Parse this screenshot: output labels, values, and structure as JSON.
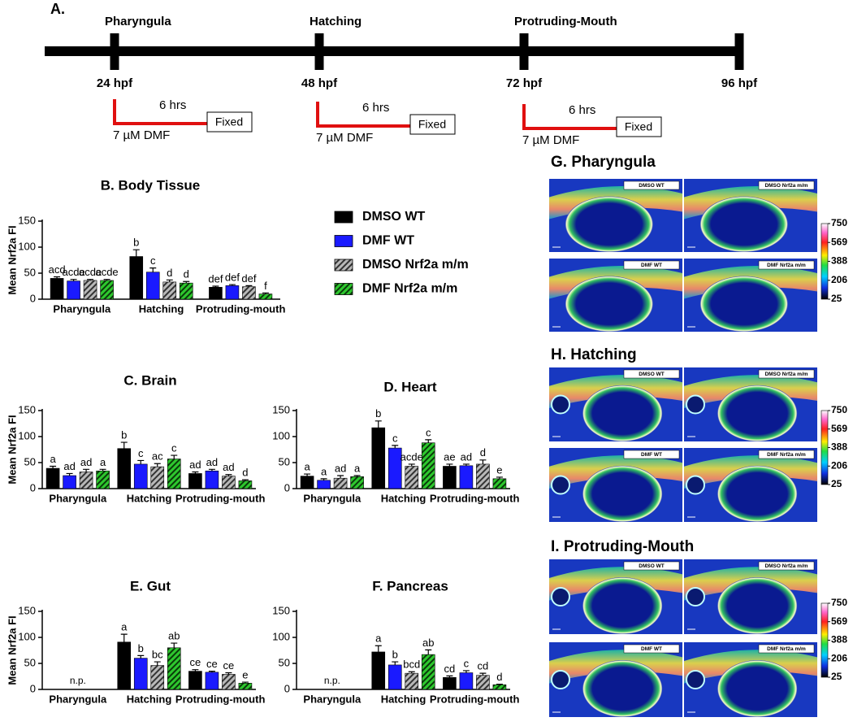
{
  "timeline": {
    "label": "A.",
    "stages": [
      "Pharyngula",
      "Hatching",
      "Protruding-Mouth"
    ],
    "times": [
      "24 hpf",
      "48 hpf",
      "72 hpf",
      "96 hpf"
    ],
    "treatments": [
      {
        "duration": "6 hrs",
        "dose": "7 µM DMF",
        "endpoint": "Fixed"
      },
      {
        "duration": "6 hrs",
        "dose": "7 µM DMF",
        "endpoint": "Fixed"
      },
      {
        "duration": "6 hrs",
        "dose": "7 µM DMF",
        "endpoint": "Fixed"
      }
    ]
  },
  "legend": [
    {
      "name": "DMSO WT",
      "color": "#000000",
      "hatched": false
    },
    {
      "name": "DMF WT",
      "color": "#1a1aff",
      "hatched": false
    },
    {
      "name": "DMSO Nrf2a m/m",
      "color": "#9a9a9a",
      "hatched": true
    },
    {
      "name": "DMF Nrf2a m/m",
      "color": "#1fb01f",
      "hatched": true
    }
  ],
  "chart_data": [
    {
      "type": "bar",
      "title": "B. Body Tissue",
      "ylabel": "Mean Nrf2a FI",
      "categories": [
        "Pharyngula",
        "Hatching",
        "Protruding-mouth"
      ],
      "ylim": [
        0,
        150
      ],
      "yticks": [
        0,
        50,
        100,
        150
      ],
      "series": [
        {
          "values": [
            40,
            82,
            23
          ],
          "errors": [
            3,
            13,
            2
          ],
          "letters": [
            "acd",
            "b",
            "def"
          ]
        },
        {
          "values": [
            35,
            52,
            26
          ],
          "errors": [
            3,
            8,
            2
          ],
          "letters": [
            "acde",
            "c",
            "def"
          ]
        },
        {
          "values": [
            36,
            33,
            24
          ],
          "errors": [
            2,
            4,
            2
          ],
          "letters": [
            "acde",
            "d",
            "def"
          ]
        },
        {
          "values": [
            36,
            31,
            10
          ],
          "errors": [
            2,
            3,
            2
          ],
          "letters": [
            "acde",
            "d",
            "f"
          ]
        }
      ]
    },
    {
      "type": "bar",
      "title": "C.  Brain",
      "ylabel": "Mean Nrf2a FI",
      "categories": [
        "Pharyngula",
        "Hatching",
        "Protruding-mouth"
      ],
      "ylim": [
        0,
        150
      ],
      "yticks": [
        0,
        50,
        100,
        150
      ],
      "series": [
        {
          "values": [
            39,
            77,
            29
          ],
          "errors": [
            4,
            12,
            3
          ],
          "letters": [
            "a",
            "b",
            "ad"
          ]
        },
        {
          "values": [
            25,
            47,
            34
          ],
          "errors": [
            4,
            7,
            3
          ],
          "letters": [
            "ad",
            "c",
            "ad"
          ]
        },
        {
          "values": [
            32,
            42,
            24
          ],
          "errors": [
            5,
            6,
            3
          ],
          "letters": [
            "ad",
            "ac",
            "ad"
          ]
        },
        {
          "values": [
            34,
            57,
            15
          ],
          "errors": [
            3,
            7,
            2
          ],
          "letters": [
            "a",
            "c",
            "d"
          ]
        }
      ]
    },
    {
      "type": "bar",
      "title": "D. Heart",
      "categories": [
        "Pharyngula",
        "Hatching",
        "Protruding-mouth"
      ],
      "ylim": [
        0,
        150
      ],
      "yticks": [
        0,
        50,
        100,
        150
      ],
      "series": [
        {
          "values": [
            24,
            117,
            43
          ],
          "errors": [
            4,
            13,
            4
          ],
          "letters": [
            "a",
            "b",
            "ae"
          ]
        },
        {
          "values": [
            16,
            78,
            44
          ],
          "errors": [
            3,
            5,
            3
          ],
          "letters": [
            "a",
            "c",
            "ad"
          ]
        },
        {
          "values": [
            20,
            43,
            47
          ],
          "errors": [
            5,
            4,
            8
          ],
          "letters": [
            "ad",
            "acde",
            "d"
          ]
        },
        {
          "values": [
            23,
            88,
            19
          ],
          "errors": [
            2,
            6,
            3
          ],
          "letters": [
            "a",
            "c",
            "e"
          ]
        }
      ]
    },
    {
      "type": "bar",
      "title": "E. Gut",
      "ylabel": "Mean Nrf2a FI",
      "missing_label": "n.p.",
      "categories": [
        "Pharyngula",
        "Hatching",
        "Protruding-mouth"
      ],
      "ylim": [
        0,
        150
      ],
      "yticks": [
        0,
        50,
        100,
        150
      ],
      "series": [
        {
          "values": [
            null,
            91,
            35
          ],
          "errors": [
            null,
            15,
            3
          ],
          "letters": [
            null,
            "a",
            "ce"
          ]
        },
        {
          "values": [
            null,
            60,
            33
          ],
          "errors": [
            null,
            5,
            2
          ],
          "letters": [
            null,
            "b",
            "ce"
          ]
        },
        {
          "values": [
            null,
            46,
            29
          ],
          "errors": [
            null,
            7,
            3
          ],
          "letters": [
            null,
            "bc",
            "ce"
          ]
        },
        {
          "values": [
            null,
            80,
            12
          ],
          "errors": [
            null,
            9,
            2
          ],
          "letters": [
            null,
            "ab",
            "e"
          ]
        }
      ]
    },
    {
      "type": "bar",
      "title": "F. Pancreas",
      "missing_label": "n.p.",
      "categories": [
        "Pharyngula",
        "Hatching",
        "Protruding-mouth"
      ],
      "ylim": [
        0,
        150
      ],
      "yticks": [
        0,
        50,
        100,
        150
      ],
      "series": [
        {
          "values": [
            null,
            72,
            23
          ],
          "errors": [
            null,
            12,
            3
          ],
          "letters": [
            null,
            "a",
            "cd"
          ]
        },
        {
          "values": [
            null,
            47,
            32
          ],
          "errors": [
            null,
            6,
            4
          ],
          "letters": [
            null,
            "b",
            "c"
          ]
        },
        {
          "values": [
            null,
            31,
            27
          ],
          "errors": [
            null,
            3,
            4
          ],
          "letters": [
            null,
            "bcd",
            "cd"
          ]
        },
        {
          "values": [
            null,
            67,
            9
          ],
          "errors": [
            null,
            9,
            1
          ],
          "letters": [
            null,
            "ab",
            "d"
          ]
        }
      ]
    }
  ],
  "images": [
    {
      "title": "G. Pharyngula",
      "panels": [
        "DMSO WT",
        "DMSO Nrf2a m/m",
        "DMF WT",
        "DMF Nrf2a m/m"
      ],
      "colorbar": {
        "lim": [
          25,
          750
        ],
        "ticks": [
          750,
          569,
          388,
          206,
          25
        ]
      }
    },
    {
      "title": "H. Hatching",
      "panels": [
        "DMSO WT",
        "DMSO Nrf2a m/m",
        "DMF WT",
        "DMF Nrf2a m/m"
      ],
      "colorbar": {
        "lim": [
          25,
          750
        ],
        "ticks": [
          750,
          569,
          388,
          206,
          25
        ]
      }
    },
    {
      "title": "I. Protruding-Mouth",
      "panels": [
        "DMSO WT",
        "DMSO Nrf2a m/m",
        "DMF WT",
        "DMF Nrf2a m/m"
      ],
      "colorbar": {
        "lim": [
          25,
          750
        ],
        "ticks": [
          750,
          569,
          388,
          206,
          25
        ]
      }
    }
  ]
}
